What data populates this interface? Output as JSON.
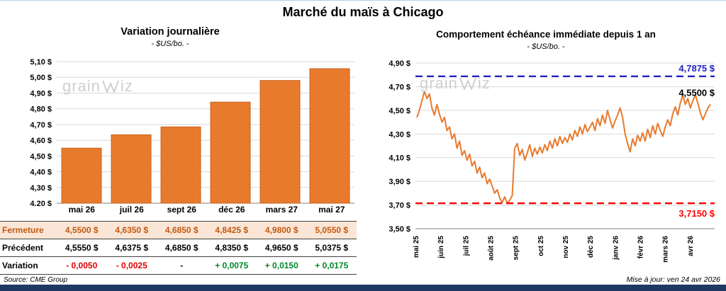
{
  "page": {
    "title": "Marché du maïs à Chicago",
    "source": "Source: CME Group",
    "updated": "Mise à jour: ven 24 avr 2026"
  },
  "watermark": {
    "pre": "grain",
    "post": "iz"
  },
  "colors": {
    "bar": "#E87A2E",
    "bar_border": "#C9631F",
    "line": "#E87A2E",
    "high": "#2222C4",
    "low": "#FF0000",
    "fermeture_bg": "#FBE5D6",
    "fermeture_text": "#C05A11",
    "negative": "#E00000",
    "positive": "#00882B",
    "grid": "#D9D9D9",
    "axis": "#7F7F7F",
    "footer_bar": "#203864",
    "watermark": "#CFCFCF"
  },
  "chart_data": [
    {
      "type": "bar",
      "title": "Variation journalière",
      "subtitle": "- $US/bo. -",
      "categories": [
        "mai 26",
        "juil 26",
        "sept 26",
        "déc 26",
        "mars 27",
        "mai 27"
      ],
      "values": [
        4.55,
        4.635,
        4.685,
        4.8425,
        4.98,
        5.055
      ],
      "ylim": [
        4.2,
        5.1
      ],
      "ytick_values": [
        4.2,
        4.3,
        4.4,
        4.5,
        4.6,
        4.7,
        4.8,
        4.9,
        5.0,
        5.1
      ],
      "ytick_labels": [
        "4,20 $",
        "4,30 $",
        "4,40 $",
        "4,50 $",
        "4,60 $",
        "4,70 $",
        "4,80 $",
        "4,90 $",
        "5,00 $",
        "5,10 $"
      ],
      "grid": true,
      "legend": "none"
    },
    {
      "type": "line",
      "title": "Comportement échéance immédiate depuis 1 an",
      "subtitle": "- $US/bo. -",
      "ylim": [
        3.5,
        4.9
      ],
      "ytick_values": [
        3.5,
        3.7,
        3.9,
        4.1,
        4.3,
        4.5,
        4.7,
        4.9
      ],
      "ytick_labels": [
        "3,50 $",
        "3,70 $",
        "3,90 $",
        "4,10 $",
        "4,30 $",
        "4,50 $",
        "4,70 $",
        "4,90 $"
      ],
      "x_labels": [
        "mai 25",
        "juin 25",
        "juil 25",
        "août 25",
        "sept 25",
        "oct 25",
        "nov 25",
        "déc 25",
        "janv 26",
        "févr 26",
        "mars 26",
        "avr 26"
      ],
      "high_line": {
        "value": 4.7875,
        "label": "4,7875 $"
      },
      "low_line": {
        "value": 3.715,
        "label": "3,7150 $"
      },
      "last_point": {
        "value": 4.55,
        "label": "4,5500 $"
      },
      "grid": true,
      "legend": "none",
      "values": [
        4.44,
        4.5,
        4.58,
        4.66,
        4.6,
        4.64,
        4.52,
        4.46,
        4.55,
        4.47,
        4.4,
        4.44,
        4.33,
        4.36,
        4.26,
        4.3,
        4.18,
        4.24,
        4.12,
        4.16,
        4.08,
        4.13,
        4.03,
        4.07,
        3.97,
        4.02,
        3.93,
        3.97,
        3.88,
        3.92,
        3.86,
        3.8,
        3.83,
        3.76,
        3.72,
        3.77,
        3.715,
        3.74,
        3.78,
        4.18,
        4.22,
        4.12,
        4.17,
        4.08,
        4.14,
        4.21,
        4.11,
        4.18,
        4.13,
        4.19,
        4.14,
        4.21,
        4.16,
        4.24,
        4.18,
        4.26,
        4.2,
        4.28,
        4.22,
        4.27,
        4.23,
        4.3,
        4.25,
        4.33,
        4.28,
        4.36,
        4.3,
        4.38,
        4.32,
        4.36,
        4.4,
        4.33,
        4.43,
        4.37,
        4.46,
        4.39,
        4.5,
        4.42,
        4.35,
        4.41,
        4.46,
        4.52,
        4.44,
        4.3,
        4.22,
        4.15,
        4.26,
        4.2,
        4.29,
        4.24,
        4.31,
        4.24,
        4.34,
        4.27,
        4.37,
        4.3,
        4.39,
        4.33,
        4.28,
        4.36,
        4.42,
        4.37,
        4.47,
        4.53,
        4.46,
        4.56,
        4.63,
        4.55,
        4.6,
        4.52,
        4.58,
        4.63,
        4.56,
        4.48,
        4.42,
        4.47,
        4.52,
        4.55
      ]
    }
  ],
  "table": {
    "rows": [
      {
        "label": "Fermeture",
        "values": [
          "4,5500 $",
          "4,6350 $",
          "4,6850 $",
          "4,8425 $",
          "4,9800 $",
          "5,0550 $"
        ]
      },
      {
        "label": "Précédent",
        "values": [
          "4,5550 $",
          "4,6375 $",
          "4,6850 $",
          "4,8350 $",
          "4,9650 $",
          "5,0375 $"
        ]
      },
      {
        "label": "Variation",
        "values": [
          "- 0,0050",
          "- 0,0025",
          "-",
          "+ 0,0075",
          "+ 0,0150",
          "+ 0,0175"
        ]
      }
    ]
  }
}
